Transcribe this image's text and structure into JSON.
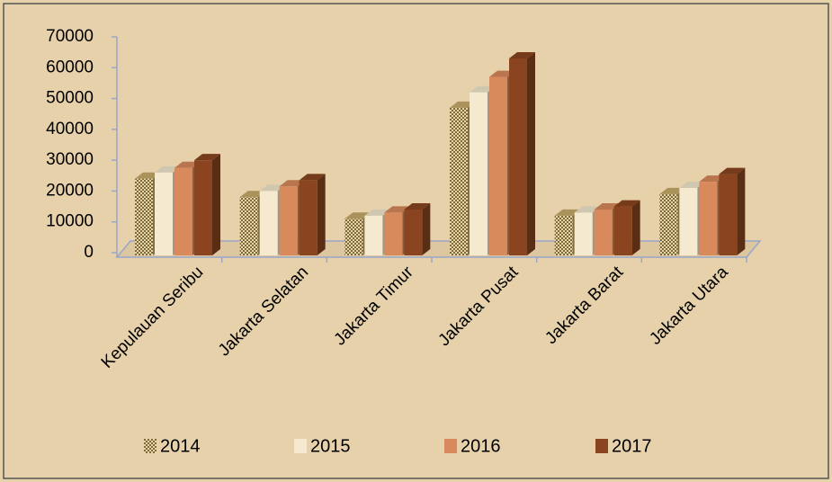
{
  "chart_data": {
    "type": "bar3d",
    "categories": [
      "Kepulauan Seribu",
      "Jakarta Selatan",
      "Jakarta Timur",
      "Jakarta Pusat",
      "Jakarta Barat",
      "Jakarta Utara"
    ],
    "series": [
      {
        "name": "2014",
        "color": "#c9ac6a",
        "values": [
          24000,
          18000,
          11000,
          47000,
          12000,
          19000
        ]
      },
      {
        "name": "2015",
        "color": "#f5ead0",
        "values": [
          26000,
          20000,
          12000,
          52000,
          13000,
          21000
        ]
      },
      {
        "name": "2016",
        "color": "#d88a5c",
        "values": [
          27500,
          21500,
          13000,
          57000,
          14000,
          23000
        ]
      },
      {
        "name": "2017",
        "color": "#8a4520",
        "values": [
          30000,
          23500,
          14000,
          63000,
          15000,
          25500
        ]
      }
    ],
    "ylim": [
      0,
      70000
    ],
    "yticks": [
      0,
      10000,
      20000,
      30000,
      40000,
      50000,
      60000,
      70000
    ]
  }
}
